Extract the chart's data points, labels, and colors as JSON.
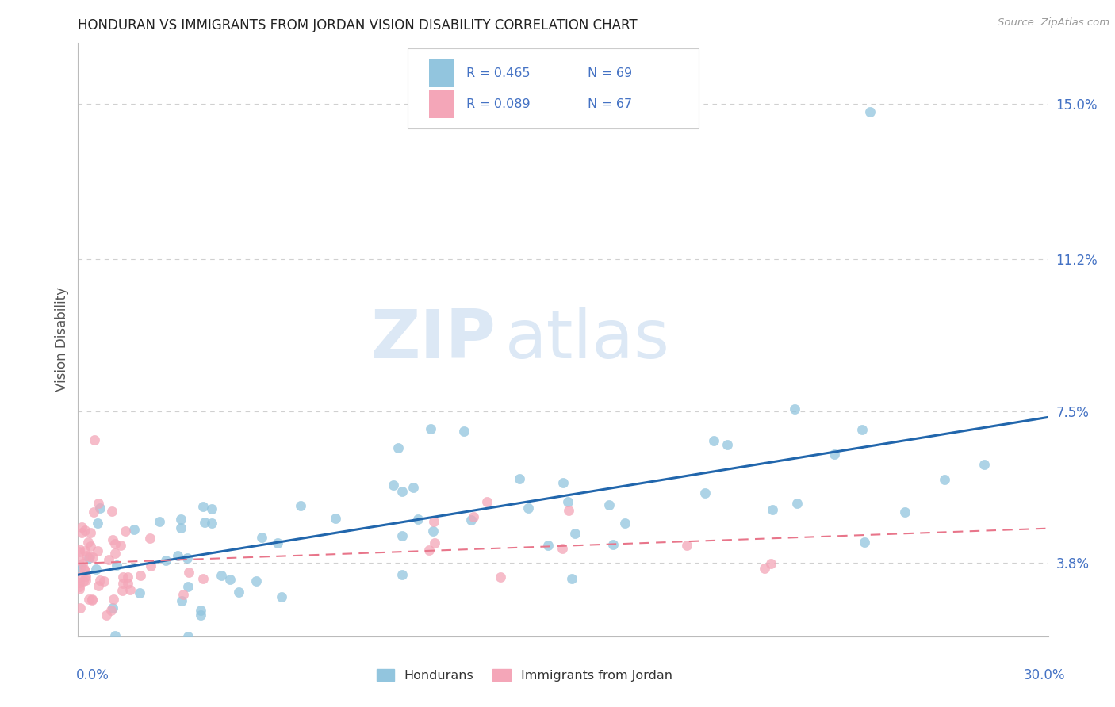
{
  "title": "HONDURAN VS IMMIGRANTS FROM JORDAN VISION DISABILITY CORRELATION CHART",
  "source": "Source: ZipAtlas.com",
  "ylabel": "Vision Disability",
  "xlim": [
    0.0,
    30.0
  ],
  "ylim": [
    2.0,
    16.5
  ],
  "yticks": [
    3.8,
    7.5,
    11.2,
    15.0
  ],
  "ytick_labels": [
    "3.8%",
    "7.5%",
    "11.2%",
    "15.0%"
  ],
  "legend_r1": "R = 0.465",
  "legend_n1": "N = 69",
  "legend_r2": "R = 0.089",
  "legend_n2": "N = 67",
  "hondurans_label": "Hondurans",
  "jordan_label": "Immigrants from Jordan",
  "blue_color": "#92c5de",
  "pink_color": "#f4a6b8",
  "blue_line_color": "#2166ac",
  "pink_line_color": "#e8758a",
  "watermark_zip": "ZIP",
  "watermark_atlas": "atlas",
  "background_color": "#ffffff",
  "grid_color": "#d0d0d0",
  "title_color": "#222222",
  "axis_label_color": "#4472c4",
  "source_color": "#999999"
}
